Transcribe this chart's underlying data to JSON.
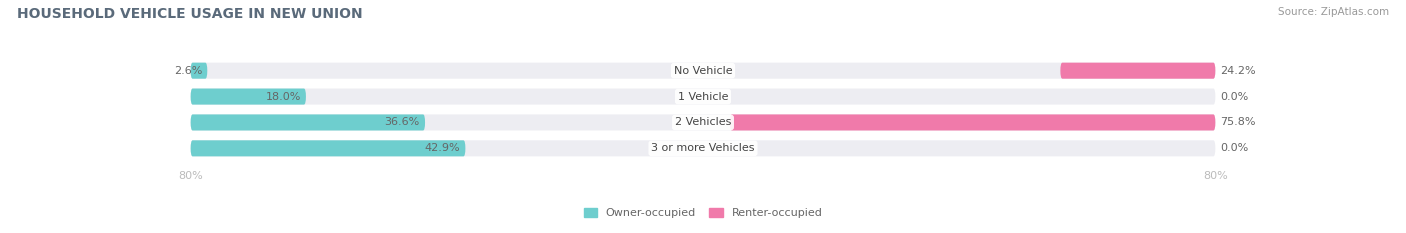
{
  "title": "HOUSEHOLD VEHICLE USAGE IN NEW UNION",
  "source": "Source: ZipAtlas.com",
  "categories": [
    "No Vehicle",
    "1 Vehicle",
    "2 Vehicles",
    "3 or more Vehicles"
  ],
  "owner_values": [
    2.6,
    18.0,
    36.6,
    42.9
  ],
  "renter_values": [
    24.2,
    0.0,
    75.8,
    0.0
  ],
  "owner_color": "#6ecece",
  "renter_color": "#f07aaa",
  "bar_bg_color": "#ededf2",
  "bg_color": "#ffffff",
  "xlim": 80.0,
  "bar_height": 0.62,
  "title_color": "#5a6a7a",
  "source_color": "#999999",
  "label_color": "#666666",
  "tick_label_color": "#bbbbbb",
  "value_fontsize": 8.0,
  "category_fontsize": 8.0,
  "title_fontsize": 10.0,
  "source_fontsize": 7.5
}
